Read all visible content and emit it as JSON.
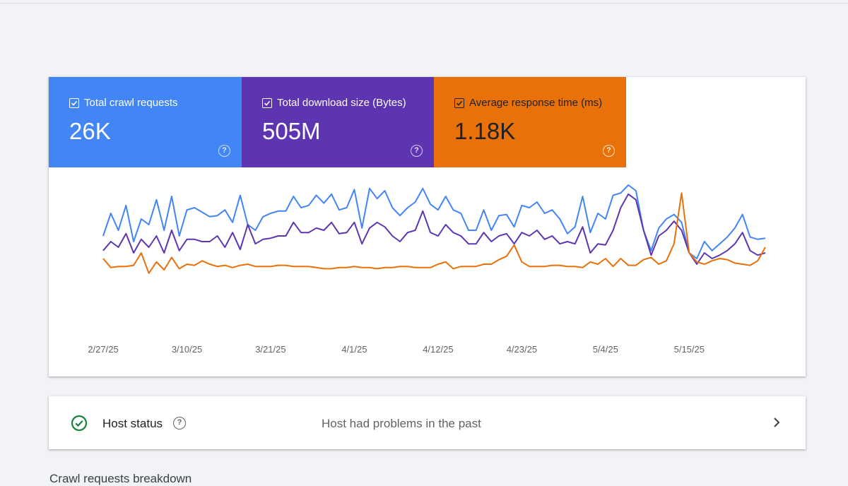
{
  "colors": {
    "crawl": "#4285f4",
    "download": "#5e35b1",
    "response": "#e8710a",
    "ok_green": "#188038"
  },
  "metrics": [
    {
      "label": "Total crawl requests",
      "value": "26K",
      "color": "#4285f4",
      "icon": "check-icon",
      "help_icon": "help-icon"
    },
    {
      "label": "Total download size (Bytes)",
      "value": "505M",
      "color": "#5e35b1",
      "icon": "check-icon",
      "help_icon": "help-icon"
    },
    {
      "label": "Average response time (ms)",
      "value": "1.18K",
      "color": "#e8710a",
      "icon": "check-icon",
      "help_icon": "help-icon"
    }
  ],
  "host_status": {
    "title": "Host status",
    "message": "Host had problems in the past",
    "icon": "check-circle-icon",
    "help_icon": "help-icon",
    "chevron_icon": "chevron-right-icon"
  },
  "breakdown_title": "Crawl requests breakdown",
  "chart_data": {
    "type": "line",
    "x": [
      "2/27/25",
      "2/28/25",
      "3/1/25",
      "3/2/25",
      "3/3/25",
      "3/4/25",
      "3/5/25",
      "3/6/25",
      "3/7/25",
      "3/8/25",
      "3/9/25",
      "3/10/25",
      "3/11/25",
      "3/12/25",
      "3/13/25",
      "3/14/25",
      "3/15/25",
      "3/16/25",
      "3/17/25",
      "3/18/25",
      "3/19/25",
      "3/20/25",
      "3/21/25",
      "3/22/25",
      "3/23/25",
      "3/24/25",
      "3/25/25",
      "3/26/25",
      "3/27/25",
      "3/28/25",
      "3/29/25",
      "3/30/25",
      "3/31/25",
      "4/1/25",
      "4/2/25",
      "4/3/25",
      "4/4/25",
      "4/5/25",
      "4/6/25",
      "4/7/25",
      "4/8/25",
      "4/9/25",
      "4/10/25",
      "4/11/25",
      "4/12/25",
      "4/13/25",
      "4/14/25",
      "4/15/25",
      "4/16/25",
      "4/17/25",
      "4/18/25",
      "4/19/25",
      "4/20/25",
      "4/21/25",
      "4/22/25",
      "4/23/25",
      "4/24/25",
      "4/25/25",
      "4/26/25",
      "4/27/25",
      "4/28/25",
      "4/29/25",
      "4/30/25",
      "5/1/25",
      "5/2/25",
      "5/3/25",
      "5/4/25",
      "5/5/25",
      "5/6/25",
      "5/7/25",
      "5/8/25",
      "5/9/25",
      "5/10/25",
      "5/11/25",
      "5/12/25",
      "5/13/25",
      "5/14/25",
      "5/15/25",
      "5/16/25",
      "5/17/25",
      "5/18/25",
      "5/19/25",
      "5/20/25",
      "5/21/25",
      "5/22/25",
      "5/23/25",
      "5/24/25",
      "5/25/25"
    ],
    "x_tick_labels": [
      "2/27/25",
      "3/10/25",
      "3/21/25",
      "4/1/25",
      "4/12/25",
      "4/23/25",
      "5/4/25",
      "5/15/25"
    ],
    "series": [
      {
        "name": "Total crawl requests",
        "color": "#4285f4",
        "values": [
          55,
          75,
          60,
          82,
          50,
          70,
          65,
          87,
          60,
          90,
          55,
          78,
          80,
          76,
          72,
          73,
          78,
          67,
          91,
          65,
          60,
          72,
          75,
          77,
          77,
          90,
          80,
          82,
          91,
          84,
          92,
          78,
          80,
          96,
          62,
          97,
          88,
          95,
          80,
          73,
          80,
          85,
          97,
          83,
          78,
          90,
          78,
          75,
          60,
          60,
          78,
          60,
          73,
          74,
          63,
          82,
          80,
          85,
          75,
          78,
          70,
          57,
          63,
          90,
          58,
          75,
          70,
          91,
          93,
          100,
          95,
          60,
          42,
          62,
          70,
          74,
          67,
          40,
          35,
          50,
          42,
          48,
          54,
          62,
          74,
          54,
          52,
          53
        ]
      },
      {
        "name": "Total download size (Bytes)",
        "color": "#5e35b1",
        "values": [
          42,
          50,
          45,
          57,
          40,
          52,
          45,
          55,
          40,
          60,
          42,
          52,
          52,
          50,
          50,
          55,
          45,
          58,
          43,
          65,
          48,
          52,
          53,
          55,
          55,
          67,
          58,
          58,
          62,
          60,
          67,
          57,
          58,
          67,
          48,
          62,
          67,
          63,
          55,
          50,
          58,
          60,
          77,
          58,
          55,
          65,
          58,
          55,
          48,
          48,
          58,
          50,
          55,
          57,
          48,
          58,
          55,
          60,
          52,
          55,
          48,
          50,
          48,
          63,
          40,
          48,
          47,
          60,
          80,
          92,
          87,
          60,
          38,
          55,
          60,
          68,
          60,
          40,
          30,
          40,
          35,
          38,
          42,
          48,
          58,
          42,
          38,
          40
        ]
      },
      {
        "name": "Average response time (ms)",
        "color": "#e8710a",
        "values": [
          35,
          27,
          28,
          28,
          29,
          40,
          22,
          32,
          25,
          36,
          26,
          30,
          29,
          33,
          30,
          28,
          29,
          27,
          29,
          30,
          28,
          28,
          28,
          29,
          29,
          28,
          28,
          28,
          27,
          26,
          26,
          27,
          27,
          28,
          27,
          27,
          26,
          27,
          27,
          28,
          28,
          27,
          27,
          27,
          30,
          32,
          26,
          28,
          28,
          28,
          30,
          30,
          34,
          37,
          47,
          32,
          28,
          28,
          28,
          29,
          29,
          28,
          28,
          27,
          32,
          30,
          35,
          28,
          35,
          29,
          29,
          34,
          36,
          30,
          33,
          48,
          93,
          40,
          32,
          30,
          33,
          35,
          34,
          31,
          30,
          29,
          33,
          45
        ]
      }
    ],
    "xlabel": "",
    "ylabel": "",
    "grid": false,
    "legend": "none"
  }
}
